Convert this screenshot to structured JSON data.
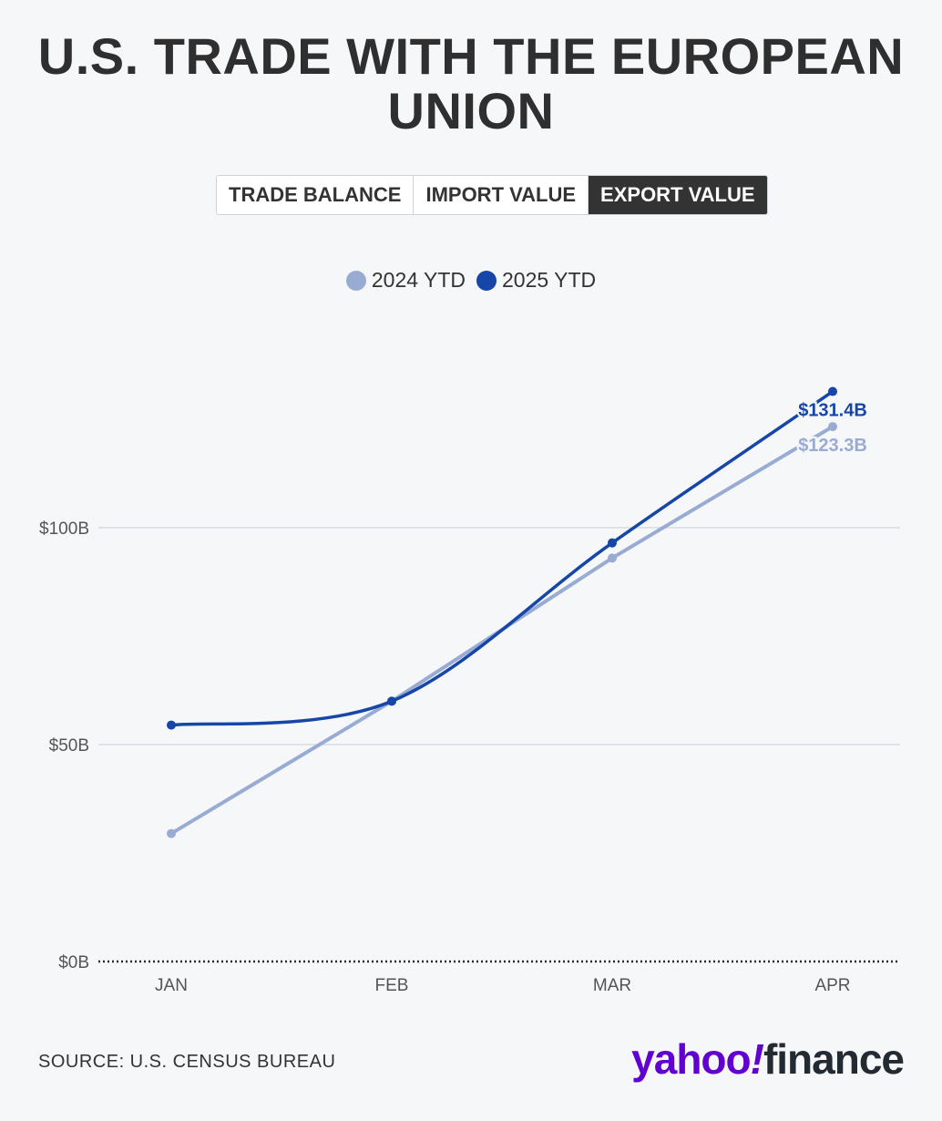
{
  "title": "U.S. TRADE WITH THE EUROPEAN UNION",
  "tabs": [
    {
      "label": "TRADE BALANCE",
      "active": false
    },
    {
      "label": "IMPORT VALUE",
      "active": false
    },
    {
      "label": "EXPORT VALUE",
      "active": true
    }
  ],
  "colors": {
    "series_2024": "#98acd3",
    "series_2025": "#1646a8",
    "grid": "#dfe2e6",
    "axis_text": "#555555"
  },
  "source": "SOURCE: U.S. CENSUS BUREAU",
  "logo": {
    "yahoo": "yahoo",
    "bang": "!",
    "finance": "finance"
  },
  "chart_data": {
    "type": "line",
    "categories": [
      "JAN",
      "FEB",
      "MAR",
      "APR"
    ],
    "series": [
      {
        "name": "2024 YTD",
        "values": [
          29.5,
          60.0,
          93.0,
          123.3
        ],
        "end_label": "$123.3B"
      },
      {
        "name": "2025 YTD",
        "values": [
          54.5,
          60.0,
          96.5,
          131.4
        ],
        "end_label": "$131.4B"
      }
    ],
    "y_ticks": [
      0,
      50,
      100
    ],
    "y_tick_labels": [
      "$0B",
      "$50B",
      "$100B"
    ],
    "ylim": [
      0,
      140
    ],
    "legend_position": "top-center",
    "grid": true
  }
}
